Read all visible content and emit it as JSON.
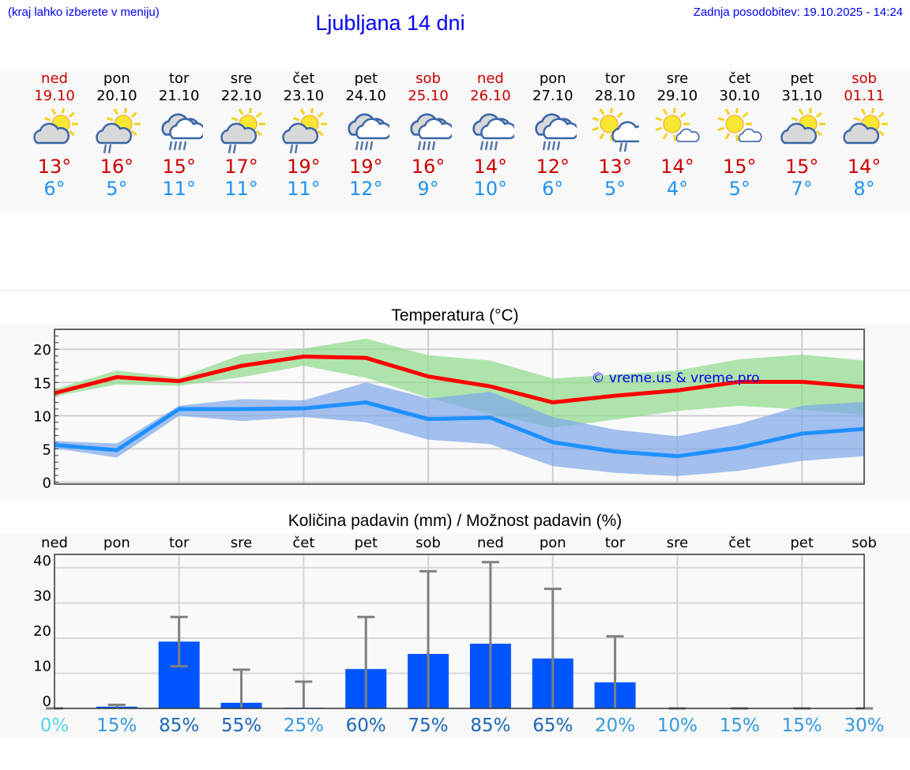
{
  "header": {
    "menu_hint": "(kraj lahko izberete v meniju)",
    "title": "Ljubljana 14 dni",
    "updated": "Zadnja posodobitev: 19.10.2025 - 14:24"
  },
  "colors": {
    "weekend": "#cc0000",
    "tmax": "#cc0000",
    "tmin": "#2292ee",
    "link": "#0000ee"
  },
  "days": [
    {
      "dow": "ned",
      "date": "19.10",
      "weekend": true,
      "icon": "partly-cloudy",
      "tmax": "13°",
      "tmin": "6°"
    },
    {
      "dow": "pon",
      "date": "20.10",
      "weekend": false,
      "icon": "partly-cloudy-rain",
      "tmax": "16°",
      "tmin": "5°"
    },
    {
      "dow": "tor",
      "date": "21.10",
      "weekend": false,
      "icon": "cloudy-rain",
      "tmax": "15°",
      "tmin": "11°"
    },
    {
      "dow": "sre",
      "date": "22.10",
      "weekend": false,
      "icon": "partly-cloudy-rain",
      "tmax": "17°",
      "tmin": "11°"
    },
    {
      "dow": "čet",
      "date": "23.10",
      "weekend": false,
      "icon": "partly-cloudy-rain",
      "tmax": "19°",
      "tmin": "11°"
    },
    {
      "dow": "pet",
      "date": "24.10",
      "weekend": false,
      "icon": "cloudy-rain",
      "tmax": "19°",
      "tmin": "12°"
    },
    {
      "dow": "sob",
      "date": "25.10",
      "weekend": true,
      "icon": "cloudy-rain",
      "tmax": "16°",
      "tmin": "9°"
    },
    {
      "dow": "ned",
      "date": "26.10",
      "weekend": true,
      "icon": "cloudy-rain",
      "tmax": "14°",
      "tmin": "10°"
    },
    {
      "dow": "pon",
      "date": "27.10",
      "weekend": false,
      "icon": "cloudy-rain",
      "tmax": "12°",
      "tmin": "6°"
    },
    {
      "dow": "tor",
      "date": "28.10",
      "weekend": false,
      "icon": "sun-showers",
      "tmax": "13°",
      "tmin": "5°"
    },
    {
      "dow": "sre",
      "date": "29.10",
      "weekend": false,
      "icon": "mostly-sunny",
      "tmax": "14°",
      "tmin": "4°"
    },
    {
      "dow": "čet",
      "date": "30.10",
      "weekend": false,
      "icon": "mostly-sunny",
      "tmax": "15°",
      "tmin": "5°"
    },
    {
      "dow": "pet",
      "date": "31.10",
      "weekend": false,
      "icon": "partly-cloudy",
      "tmax": "15°",
      "tmin": "7°"
    },
    {
      "dow": "sob",
      "date": "01.11",
      "weekend": true,
      "icon": "partly-cloudy",
      "tmax": "14°",
      "tmin": "8°"
    }
  ],
  "chart_data": [
    {
      "type": "line",
      "title": "Temperatura (°C)",
      "watermark": "© vreme.us & vreme.pro",
      "x": [
        "19.10",
        "20.10",
        "21.10",
        "22.10",
        "23.10",
        "24.10",
        "25.10",
        "26.10",
        "27.10",
        "28.10",
        "29.10",
        "30.10",
        "31.10",
        "01.11"
      ],
      "yticks": [
        0,
        5,
        10,
        15,
        20
      ],
      "ylim": [
        -0.3,
        23
      ],
      "grid": true,
      "series": [
        {
          "key": "max",
          "color": "#ff0000",
          "values": [
            13.4,
            15.8,
            15.2,
            17.5,
            18.9,
            18.7,
            15.9,
            14.4,
            12.0,
            13.0,
            13.8,
            15.1,
            15.1,
            14.3
          ]
        },
        {
          "key": "min",
          "color": "#1e90ff",
          "values": [
            5.6,
            4.8,
            11.0,
            11.0,
            11.1,
            12.0,
            9.5,
            9.7,
            6.0,
            4.6,
            3.9,
            5.2,
            7.3,
            8.0
          ]
        }
      ],
      "bands": [
        {
          "key": "max-range",
          "color": "#8fdc8a",
          "low": [
            12.9,
            14.7,
            14.5,
            15.8,
            17.5,
            15.7,
            12.7,
            10.2,
            8.2,
            9.4,
            10.7,
            11.5,
            10.9,
            10.1
          ],
          "high": [
            14.0,
            16.8,
            15.7,
            19.2,
            20.1,
            21.6,
            19.1,
            18.3,
            15.6,
            16.2,
            16.8,
            18.5,
            19.2,
            18.3
          ]
        },
        {
          "key": "min-range",
          "color": "#7ea6ea",
          "low": [
            5.1,
            3.7,
            10.0,
            9.2,
            9.8,
            9.0,
            6.4,
            5.7,
            2.4,
            1.4,
            0.9,
            1.7,
            3.2,
            3.9
          ],
          "high": [
            6.2,
            5.8,
            11.5,
            12.5,
            12.3,
            15.0,
            12.6,
            13.6,
            9.8,
            7.9,
            6.9,
            8.8,
            11.5,
            12.1
          ]
        }
      ]
    },
    {
      "type": "bar",
      "title": "Količina padavin (mm) / Možnost padavin (%)",
      "categories": [
        "ned",
        "pon",
        "tor",
        "sre",
        "čet",
        "pet",
        "sob",
        "ned",
        "pon",
        "tor",
        "sre",
        "čet",
        "pet",
        "sob"
      ],
      "values": [
        0,
        0.5,
        19,
        1.6,
        0.2,
        11.2,
        15.5,
        18.4,
        14.2,
        7.4,
        0,
        0,
        0,
        0
      ],
      "error_low": [
        0,
        0,
        12,
        0,
        0,
        0,
        0,
        0,
        0,
        0,
        0,
        0,
        0,
        0
      ],
      "error_high": [
        0,
        1,
        26,
        11,
        7.6,
        26,
        39,
        41.6,
        34,
        20.5,
        0,
        0,
        0,
        0
      ],
      "probability": [
        "0%",
        "15%",
        "85%",
        "55%",
        "25%",
        "60%",
        "75%",
        "85%",
        "65%",
        "20%",
        "10%",
        "15%",
        "15%",
        "30%"
      ],
      "probability_colors": {
        "zero": "#55d4e4",
        "low": "#3399dd",
        "high": "#1a66b8"
      },
      "yticks": [
        0,
        10,
        20,
        30,
        40
      ],
      "ylim": [
        0,
        43.8
      ],
      "bar_color": "#0055ff",
      "error_color": "#808080",
      "grid": true
    }
  ]
}
